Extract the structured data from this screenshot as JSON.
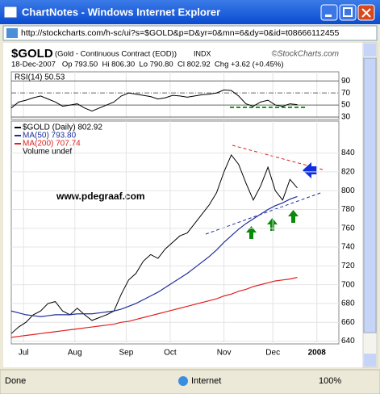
{
  "window": {
    "title": "ChartNotes - Windows Internet Explorer",
    "address": "http://stockcharts.com/h-sc/ui?s=$GOLD&p=D&yr=0&mn=6&dy=0&id=t08666112455",
    "status": "Done",
    "zone": "Internet",
    "zoom": "100%"
  },
  "chart_data": {
    "type": "line",
    "symbol": "$GOLD",
    "description": "(Gold - Continuous Contract (EOD))",
    "exchange": "INDX",
    "credit": "©StockCharts.com",
    "quote": "18-Dec-2007   Op 793.50  Hi 806.30  Lo 790.80  Cl 802.92  Chg +3.62 (+0.45%)",
    "annotation": "www.pdegraaf.com",
    "legend_extra": "Volume undef",
    "x": [
      0,
      3,
      6,
      9,
      12,
      15,
      18,
      21,
      24,
      27,
      30,
      33,
      36,
      39,
      42,
      45,
      48,
      51,
      54,
      57,
      60,
      63,
      66,
      69,
      72,
      75,
      78,
      81,
      84,
      87,
      90,
      93,
      96,
      99,
      102,
      105,
      108,
      111,
      114,
      117
    ],
    "xlim": [
      0,
      134
    ],
    "xticks": [
      {
        "value": 5,
        "label": "Jul"
      },
      {
        "value": 26,
        "label": "Aug"
      },
      {
        "value": 47,
        "label": "Sep"
      },
      {
        "value": 65,
        "label": "Oct"
      },
      {
        "value": 87,
        "label": "Nov"
      },
      {
        "value": 107,
        "label": "Dec"
      },
      {
        "value": 125,
        "label": "2008"
      }
    ],
    "ylim": [
      637,
      874
    ],
    "yticks": [
      640,
      660,
      680,
      700,
      720,
      740,
      760,
      780,
      800,
      820,
      840
    ],
    "grid": true,
    "series": [
      {
        "name": "$GOLD (Daily) 802.92",
        "color": "#000000",
        "values": [
          648,
          655,
          660,
          668,
          672,
          680,
          682,
          672,
          668,
          675,
          668,
          662,
          665,
          668,
          672,
          690,
          705,
          712,
          725,
          732,
          728,
          738,
          745,
          752,
          755,
          765,
          775,
          785,
          798,
          820,
          838,
          828,
          808,
          790,
          805,
          825,
          800,
          790,
          812,
          802.92
        ]
      },
      {
        "name": "MA(50) 793.80",
        "color": "#1f2f9a",
        "values": [
          672,
          670,
          668,
          667,
          666,
          667,
          668,
          668,
          668,
          669,
          669,
          669,
          670,
          671,
          672,
          674,
          677,
          680,
          684,
          688,
          692,
          697,
          702,
          707,
          712,
          718,
          724,
          730,
          737,
          745,
          752,
          759,
          765,
          770,
          775,
          780,
          784,
          787,
          791,
          793.8
        ]
      },
      {
        "name": "MA(200) 707.74",
        "color": "#e02020",
        "values": [
          644,
          645,
          646,
          647,
          648,
          649,
          650,
          651,
          652,
          653,
          654,
          655,
          656,
          657,
          658,
          660,
          661,
          663,
          665,
          667,
          669,
          671,
          673,
          675,
          677,
          679,
          681,
          683,
          685,
          688,
          690,
          693,
          695,
          698,
          700,
          702,
          704,
          705,
          706,
          707.74
        ]
      }
    ],
    "rsi": {
      "name": "RSI(14) 50.53",
      "color": "#000000",
      "values": [
        45,
        55,
        58,
        62,
        65,
        60,
        55,
        48,
        50,
        52,
        45,
        40,
        45,
        50,
        55,
        65,
        70,
        68,
        66,
        64,
        60,
        62,
        66,
        65,
        63,
        65,
        67,
        68,
        70,
        75,
        74,
        65,
        52,
        48,
        55,
        58,
        50,
        48,
        52,
        50.53
      ],
      "ylim": [
        26,
        105
      ],
      "yticks": [
        30,
        50,
        70,
        90
      ]
    }
  }
}
